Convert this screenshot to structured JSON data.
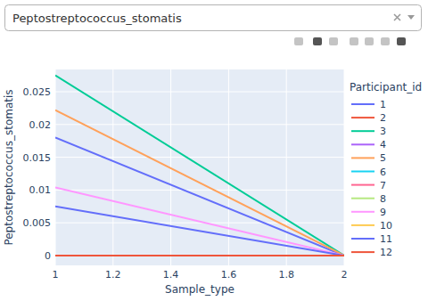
{
  "dropdown": {
    "selected": "Peptostreptococcus_stomatis"
  },
  "chart_data": {
    "type": "line",
    "x_label": "Sample_type",
    "y_label": "Peptostreptococcus_stomatis",
    "legend_title": "Participant_id",
    "legend": "right",
    "grid": true,
    "x": [
      1,
      2
    ],
    "xlim": [
      1,
      2
    ],
    "xticks": [
      1,
      1.2,
      1.4,
      1.6,
      1.8,
      2
    ],
    "ylim": [
      -0.0015,
      0.0284
    ],
    "yticks": [
      0,
      0.005,
      0.01,
      0.015,
      0.02,
      0.025
    ],
    "series": [
      {
        "name": "1",
        "color": "#636efa",
        "values": [
          0.018,
          0
        ]
      },
      {
        "name": "2",
        "color": "#EF553B",
        "values": [
          0,
          0
        ]
      },
      {
        "name": "3",
        "color": "#00cc96",
        "values": [
          0.0275,
          0
        ]
      },
      {
        "name": "4",
        "color": "#ab63fa",
        "values": [
          0,
          0
        ]
      },
      {
        "name": "5",
        "color": "#FFA15A",
        "values": [
          0.0222,
          0
        ]
      },
      {
        "name": "6",
        "color": "#19d3f3",
        "values": [
          0,
          0
        ]
      },
      {
        "name": "7",
        "color": "#FF6692",
        "values": [
          0,
          0
        ]
      },
      {
        "name": "8",
        "color": "#B6E880",
        "values": [
          0,
          0
        ]
      },
      {
        "name": "9",
        "color": "#FF97FF",
        "values": [
          0.0104,
          0
        ]
      },
      {
        "name": "10",
        "color": "#FECB52",
        "values": [
          0,
          0
        ]
      },
      {
        "name": "11",
        "color": "#636efa",
        "values": [
          0.0075,
          0
        ]
      },
      {
        "name": "12",
        "color": "#EF553B",
        "values": [
          0,
          0
        ]
      }
    ]
  }
}
